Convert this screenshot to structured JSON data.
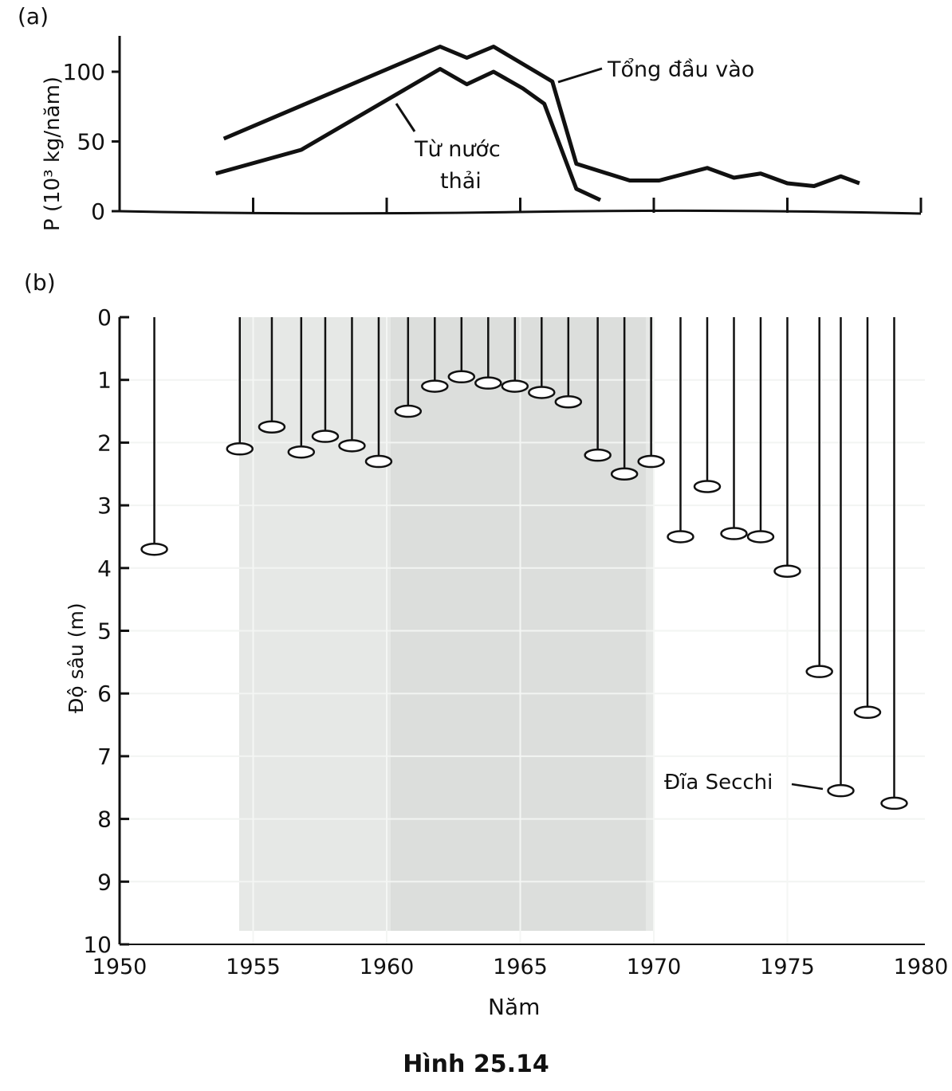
{
  "chart_data": [
    {
      "type": "line",
      "panel_label": "(a)",
      "ylabel": "P (10³ kg/năm)",
      "xlim": [
        1950,
        1980
      ],
      "ylim": [
        0,
        125
      ],
      "yticks": [
        0,
        50,
        100
      ],
      "xticks": [
        1955,
        1960,
        1965,
        1970,
        1975,
        1980
      ],
      "series": [
        {
          "name": "Tổng đầu vào",
          "x": [
            1953.9,
            1962,
            1963,
            1964,
            1966.2,
            1967.1,
            1969.1,
            1970.2,
            1972,
            1973,
            1974,
            1975,
            1976,
            1977,
            1977.7
          ],
          "y": [
            52,
            118,
            110,
            118,
            93,
            34,
            22,
            22,
            31,
            24,
            27,
            20,
            18,
            25,
            20
          ]
        },
        {
          "name": "Từ nước thải",
          "label_line2": "thải",
          "label_line1": "Từ nước",
          "x": [
            1953.6,
            1956.8,
            1962,
            1963,
            1964,
            1965.1,
            1965.9,
            1967.1,
            1968
          ],
          "y": [
            27,
            44,
            102,
            91,
            100,
            88,
            77,
            16,
            8
          ]
        }
      ]
    },
    {
      "type": "scatter",
      "panel_label": "(b)",
      "ylabel": "Độ sâu (m)",
      "xlabel": "Năm",
      "xlim": [
        1950,
        1980
      ],
      "ylim": [
        0,
        10
      ],
      "y_inverted": true,
      "grid": true,
      "xticks": [
        1950,
        1955,
        1960,
        1965,
        1970,
        1975,
        1980
      ],
      "yticks": [
        0,
        1,
        2,
        3,
        4,
        5,
        6,
        7,
        8,
        9,
        10
      ],
      "annotation": "Đĩa Secchi",
      "series": [
        {
          "name": "Secchi depth",
          "x": [
            1951.3,
            1954.5,
            1955.7,
            1956.8,
            1957.7,
            1958.7,
            1959.7,
            1960.8,
            1961.8,
            1962.8,
            1963.8,
            1964.8,
            1965.8,
            1966.8,
            1967.9,
            1968.9,
            1969.9,
            1971,
            1972,
            1973,
            1974,
            1975,
            1976.2,
            1977,
            1978,
            1979
          ],
          "y": [
            3.7,
            2.1,
            1.75,
            2.15,
            1.9,
            2.05,
            2.3,
            1.5,
            1.1,
            0.95,
            1.05,
            1.1,
            1.2,
            1.35,
            2.2,
            2.5,
            2.3,
            3.5,
            2.7,
            3.45,
            3.5,
            4.05,
            5.65,
            7.55,
            6.3,
            7.75
          ]
        }
      ]
    }
  ],
  "caption": "Hình 25.14"
}
